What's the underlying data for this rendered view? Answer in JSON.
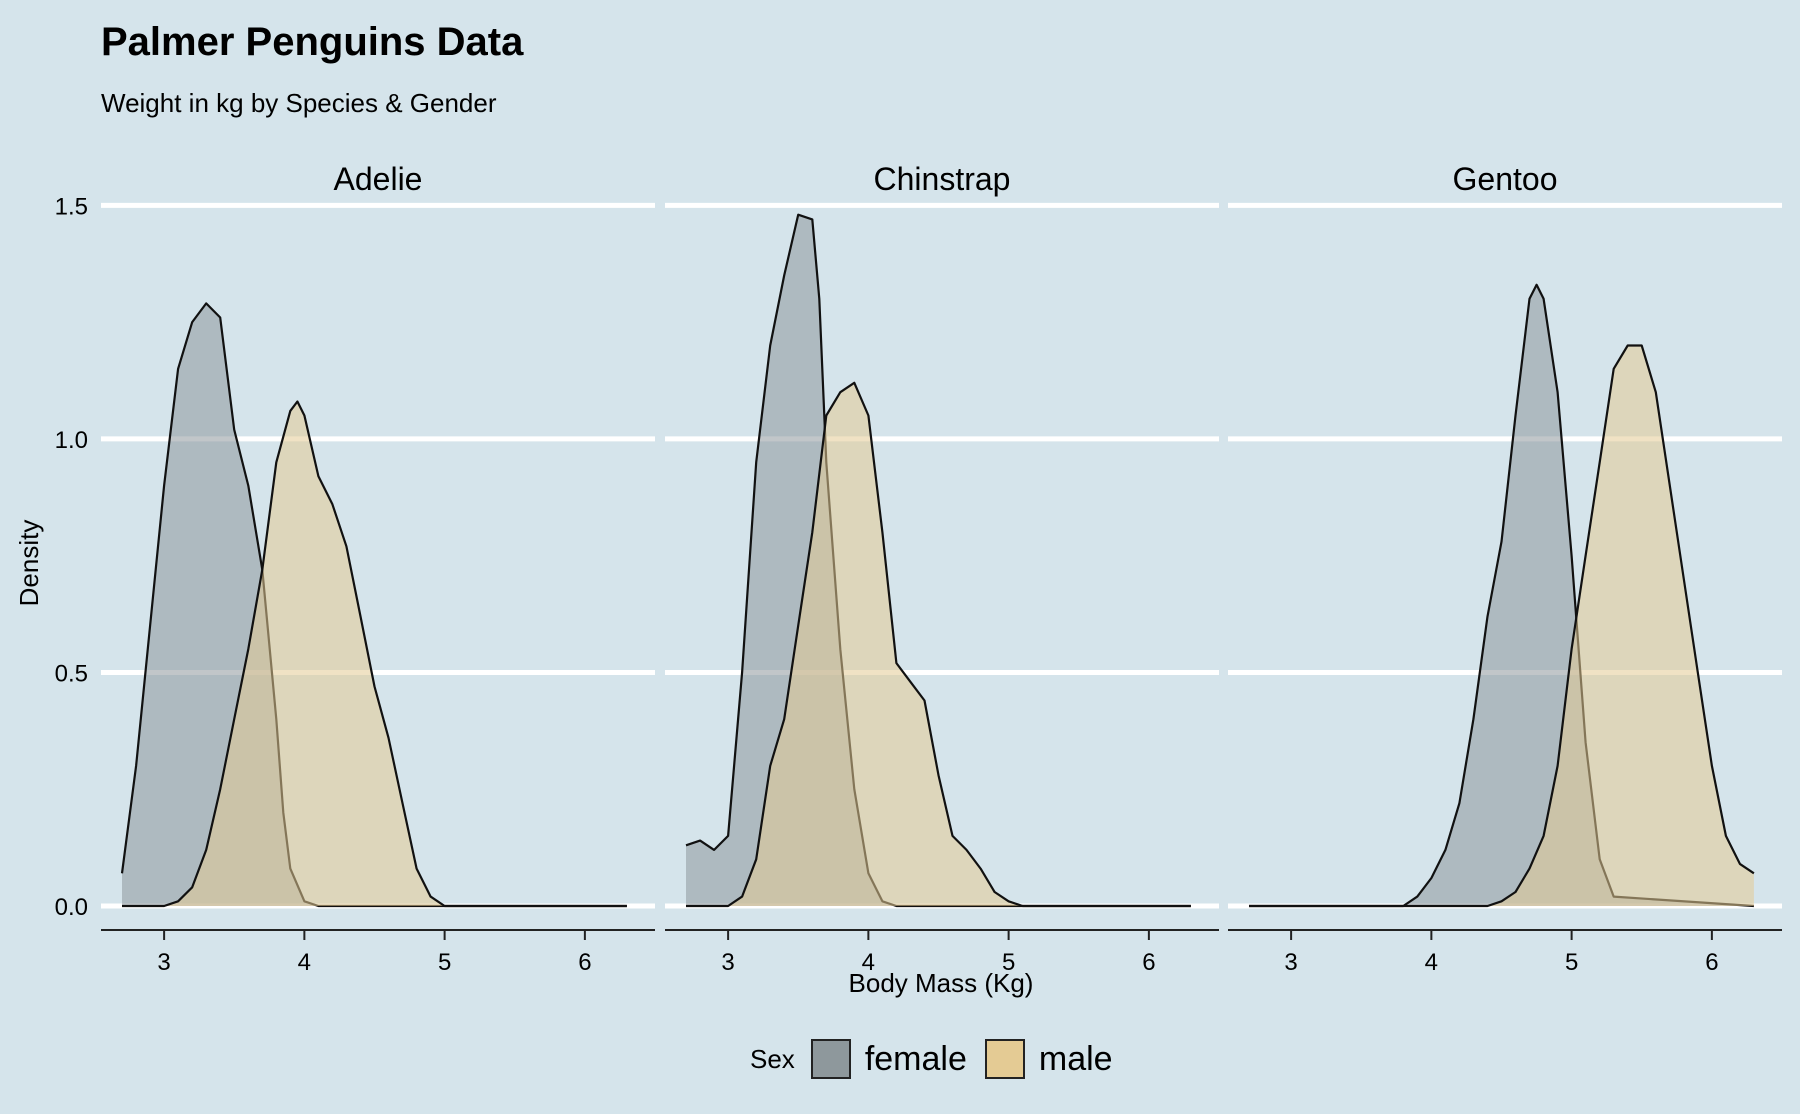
{
  "title": "Palmer Penguins Data",
  "subtitle": "Weight in kg by Species & Gender",
  "colors": {
    "background": "#d5e4eb",
    "grid": "#ffffff",
    "female": "#8e989c",
    "male": "#e4cb94",
    "overlap": "#b39d6c",
    "outline": "#111111"
  },
  "legend": {
    "title": "Sex",
    "items": [
      {
        "label": "female",
        "color_key": "female"
      },
      {
        "label": "male",
        "color_key": "male"
      }
    ]
  },
  "chart_data": {
    "type": "area",
    "subtype": "density",
    "title": "Palmer Penguins Data",
    "subtitle": "Weight in kg by Species & Gender",
    "xlabel": "Body Mass (Kg)",
    "ylabel": "Density",
    "xlim": [
      2.55,
      6.5
    ],
    "ylim": [
      -0.03,
      1.55
    ],
    "xticks": [
      3,
      4,
      5,
      6
    ],
    "yticks": [
      0.0,
      0.5,
      1.0,
      1.5
    ],
    "ytick_labels": [
      "0.0",
      "0.5",
      "1.0",
      "1.5"
    ],
    "grid": "horizontal",
    "legend_position": "bottom",
    "panels": [
      {
        "name": "Adelie",
        "series": [
          {
            "name": "female",
            "x": [
              2.7,
              2.8,
              2.9,
              3.0,
              3.1,
              3.2,
              3.3,
              3.4,
              3.5,
              3.6,
              3.7,
              3.8,
              3.85,
              3.9,
              4.0,
              4.1,
              4.2,
              4.3,
              4.5,
              6.3
            ],
            "y": [
              0.07,
              0.3,
              0.6,
              0.9,
              1.15,
              1.25,
              1.29,
              1.26,
              1.02,
              0.9,
              0.72,
              0.4,
              0.2,
              0.08,
              0.01,
              0,
              0,
              0,
              0,
              0
            ]
          },
          {
            "name": "male",
            "x": [
              2.7,
              3.0,
              3.1,
              3.2,
              3.3,
              3.4,
              3.5,
              3.6,
              3.7,
              3.8,
              3.9,
              3.95,
              4.0,
              4.1,
              4.2,
              4.3,
              4.4,
              4.5,
              4.6,
              4.7,
              4.8,
              4.9,
              5.0,
              5.2,
              6.3
            ],
            "y": [
              0,
              0,
              0.01,
              0.04,
              0.12,
              0.25,
              0.4,
              0.55,
              0.72,
              0.95,
              1.06,
              1.08,
              1.05,
              0.92,
              0.86,
              0.77,
              0.62,
              0.47,
              0.36,
              0.22,
              0.08,
              0.02,
              0,
              0,
              0
            ]
          }
        ]
      },
      {
        "name": "Chinstrap",
        "series": [
          {
            "name": "female",
            "x": [
              2.7,
              2.8,
              2.9,
              3.0,
              3.1,
              3.2,
              3.3,
              3.4,
              3.5,
              3.6,
              3.65,
              3.7,
              3.8,
              3.9,
              4.0,
              4.1,
              4.2,
              4.3,
              4.5,
              6.3
            ],
            "y": [
              0.13,
              0.14,
              0.12,
              0.15,
              0.5,
              0.95,
              1.2,
              1.35,
              1.48,
              1.47,
              1.3,
              0.95,
              0.55,
              0.25,
              0.07,
              0.01,
              0,
              0,
              0,
              0
            ]
          },
          {
            "name": "male",
            "x": [
              2.7,
              3.0,
              3.1,
              3.2,
              3.3,
              3.4,
              3.5,
              3.6,
              3.7,
              3.8,
              3.9,
              4.0,
              4.1,
              4.2,
              4.3,
              4.4,
              4.5,
              4.6,
              4.7,
              4.8,
              4.9,
              5.0,
              5.1,
              6.3
            ],
            "y": [
              0,
              0,
              0.02,
              0.1,
              0.3,
              0.4,
              0.6,
              0.8,
              1.05,
              1.1,
              1.12,
              1.05,
              0.8,
              0.52,
              0.48,
              0.44,
              0.28,
              0.15,
              0.12,
              0.08,
              0.03,
              0.01,
              0,
              0
            ]
          }
        ]
      },
      {
        "name": "Gentoo",
        "series": [
          {
            "name": "female",
            "x": [
              2.7,
              3.8,
              3.9,
              4.0,
              4.1,
              4.2,
              4.3,
              4.4,
              4.5,
              4.6,
              4.7,
              4.75,
              4.8,
              4.9,
              5.0,
              5.1,
              5.2,
              5.3,
              6.3
            ],
            "y": [
              0,
              0,
              0.02,
              0.06,
              0.12,
              0.22,
              0.4,
              0.62,
              0.78,
              1.05,
              1.3,
              1.33,
              1.3,
              1.1,
              0.75,
              0.35,
              0.1,
              0.02,
              0
            ]
          },
          {
            "name": "male",
            "x": [
              2.7,
              4.4,
              4.5,
              4.6,
              4.7,
              4.8,
              4.9,
              5.0,
              5.1,
              5.2,
              5.3,
              5.4,
              5.5,
              5.6,
              5.7,
              5.8,
              5.9,
              6.0,
              6.1,
              6.2,
              6.3
            ],
            "y": [
              0,
              0,
              0.01,
              0.03,
              0.08,
              0.15,
              0.3,
              0.55,
              0.75,
              0.95,
              1.15,
              1.2,
              1.2,
              1.1,
              0.9,
              0.7,
              0.5,
              0.3,
              0.15,
              0.09,
              0.07
            ]
          }
        ]
      }
    ]
  }
}
